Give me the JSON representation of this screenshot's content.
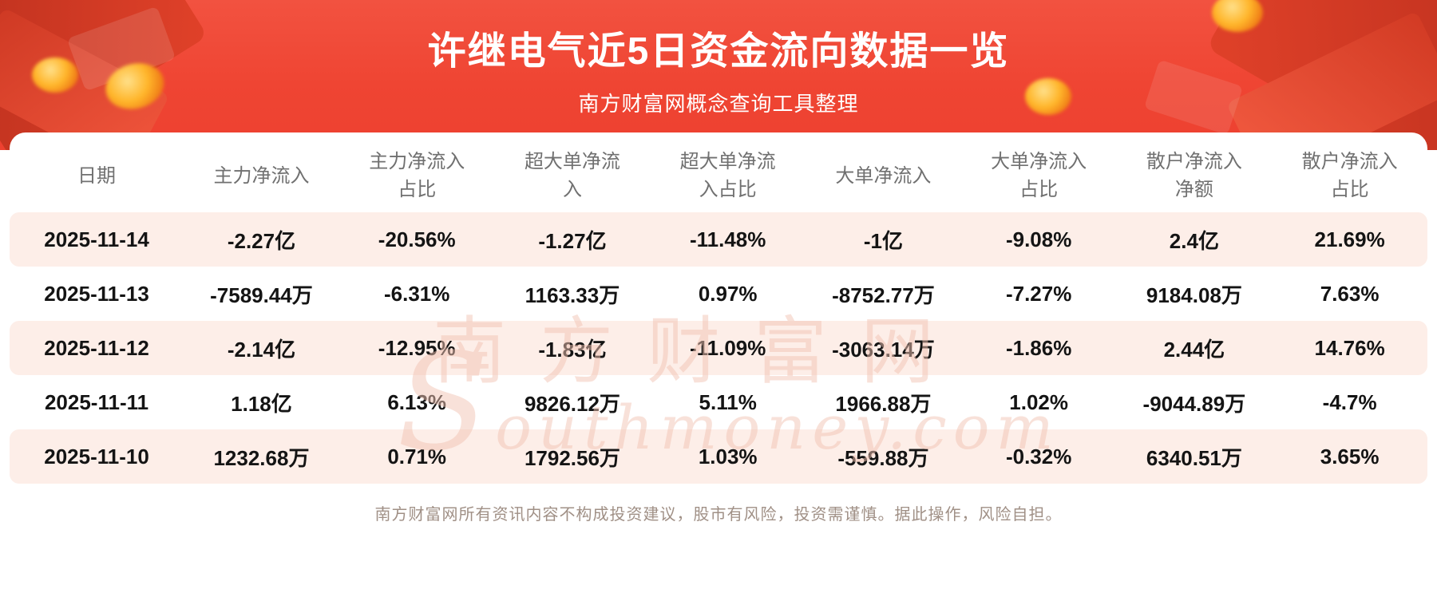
{
  "header": {
    "title": "许继电气近5日资金流向数据一览",
    "subtitle": "南方财富网概念查询工具整理"
  },
  "watermark": {
    "text_cn": "南方财富网",
    "text_en": "Southmoney.com"
  },
  "footer": {
    "disclaimer": "南方财富网所有资讯内容不构成投资建议，股市有风险，投资需谨慎。据此操作，风险自担。"
  },
  "colors": {
    "banner_red": "#ef4533",
    "decoration_dark_red": "#bd301e",
    "decoration_gold": "#ffb52a",
    "row_highlight_pink": "#fdeee8",
    "header_text": "#707070",
    "body_text": "#141414",
    "footer_text": "#a09086",
    "watermark_pink": "#f2c4b4"
  },
  "chart_data": {
    "type": "table",
    "title": "许继电气近5日资金流向数据一览",
    "columns": [
      "日期",
      "主力净流入",
      "主力净流入占比",
      "超大单净流入",
      "超大单净流入占比",
      "大单净流入",
      "大单净流入占比",
      "散户净流入净额",
      "散户净流入占比"
    ],
    "rows": [
      [
        "2025-11-14",
        "-2.27亿",
        "-20.56%",
        "-1.27亿",
        "-11.48%",
        "-1亿",
        "-9.08%",
        "2.4亿",
        "21.69%"
      ],
      [
        "2025-11-13",
        "-7589.44万",
        "-6.31%",
        "1163.33万",
        "0.97%",
        "-8752.77万",
        "-7.27%",
        "9184.08万",
        "7.63%"
      ],
      [
        "2025-11-12",
        "-2.14亿",
        "-12.95%",
        "-1.83亿",
        "-11.09%",
        "-3063.14万",
        "-1.86%",
        "2.44亿",
        "14.76%"
      ],
      [
        "2025-11-11",
        "1.18亿",
        "6.13%",
        "9826.12万",
        "5.11%",
        "1966.88万",
        "1.02%",
        "-9044.89万",
        "-4.7%"
      ],
      [
        "2025-11-10",
        "1232.68万",
        "0.71%",
        "1792.56万",
        "1.03%",
        "-559.88万",
        "-0.32%",
        "6340.51万",
        "3.65%"
      ]
    ]
  }
}
